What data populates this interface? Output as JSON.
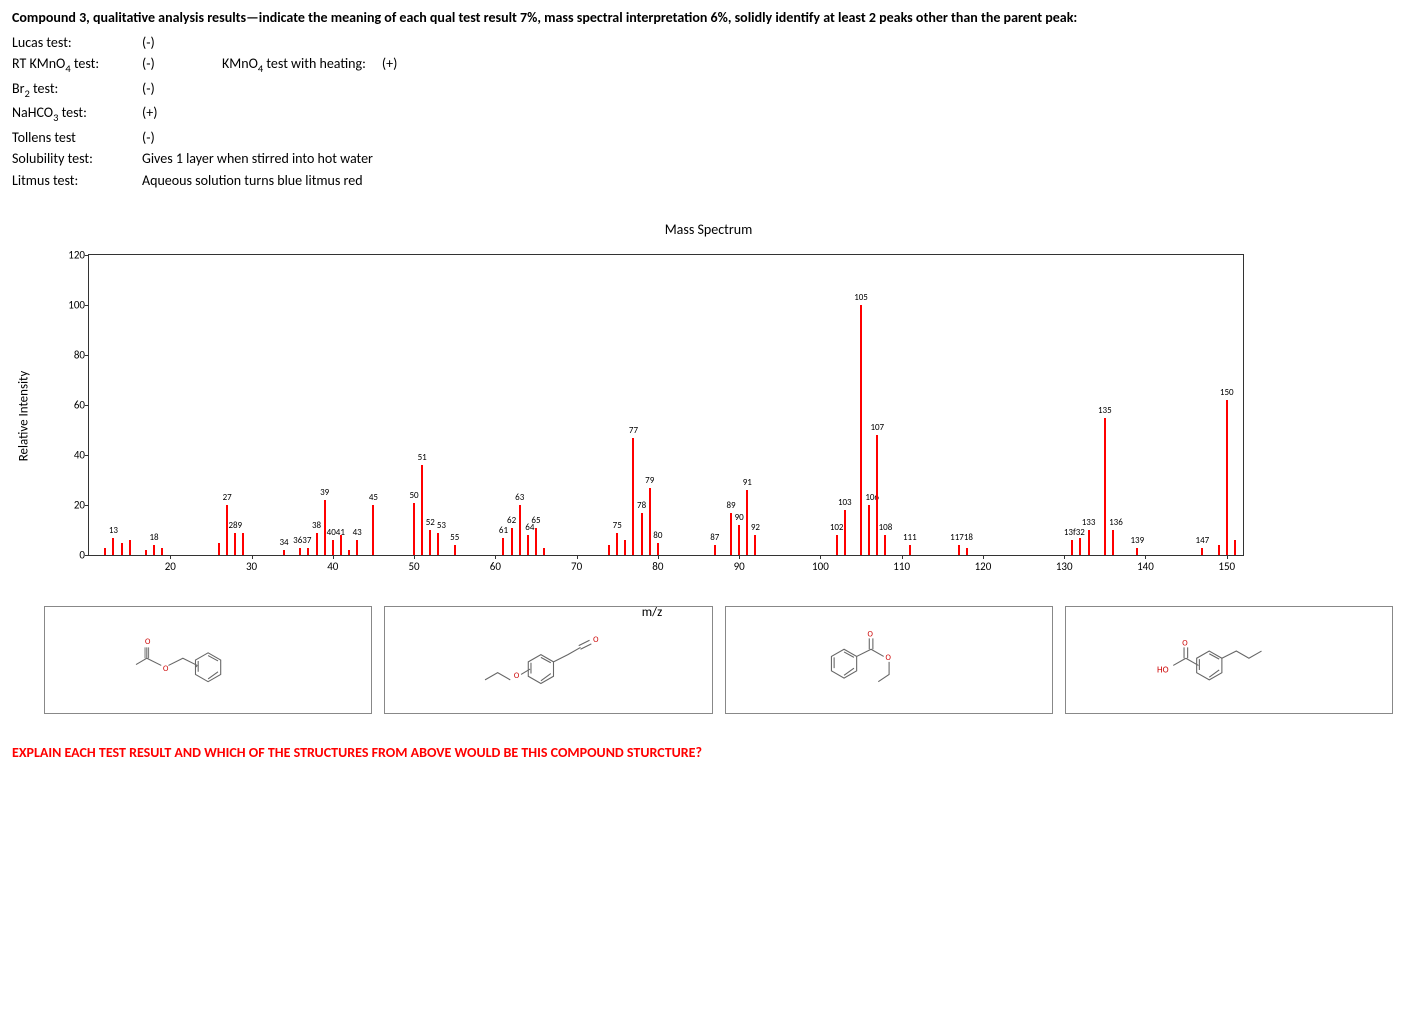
{
  "header": "Compound 3, qualitative analysis results—indicate the meaning of each qual test result 7%, mass spectral interpretation 6%, solidly identify at least 2 peaks other than the parent peak:",
  "tests": {
    "lucas": {
      "label": "Lucas test:",
      "result": "(-)"
    },
    "kmno4_rt": {
      "label": "RT KMnO₄ test:",
      "result": "(-)",
      "extra_label": "KMnO₄ test with heating:",
      "extra_result": "(+)"
    },
    "br2": {
      "label": "Br₂ test:",
      "result": "(-)"
    },
    "nahco3": {
      "label": "NaHCO₃ test:",
      "result": "(+)"
    },
    "tollens": {
      "label": "Tollens test",
      "result": "(-)"
    },
    "solubility": {
      "label": "Solubility test:",
      "result": "Gives 1 layer when stirred into hot water"
    },
    "litmus": {
      "label": "Litmus test:",
      "result": "Aqueous solution turns blue litmus red"
    }
  },
  "chart": {
    "title": "Mass Spectrum",
    "ylabel": "Relative Intensity",
    "xlabel": "m/z",
    "xlim": [
      10,
      152
    ],
    "ylim": [
      0,
      120
    ],
    "yticks": [
      0,
      20,
      40,
      60,
      80,
      100,
      120
    ],
    "xticks": [
      20,
      30,
      40,
      50,
      60,
      70,
      80,
      90,
      100,
      110,
      120,
      130,
      140,
      150
    ],
    "peak_color": "#ff0000",
    "label_color": "#000000",
    "peaks": [
      {
        "mz": 12,
        "i": 3,
        "label": ""
      },
      {
        "mz": 13,
        "i": 7,
        "label": "13"
      },
      {
        "mz": 14,
        "i": 5,
        "label": ""
      },
      {
        "mz": 15,
        "i": 6,
        "label": ""
      },
      {
        "mz": 17,
        "i": 2,
        "label": ""
      },
      {
        "mz": 18,
        "i": 4,
        "label": "18"
      },
      {
        "mz": 19,
        "i": 3,
        "label": ""
      },
      {
        "mz": 26,
        "i": 5,
        "label": ""
      },
      {
        "mz": 27,
        "i": 20,
        "label": "27"
      },
      {
        "mz": 28,
        "i": 9,
        "label": "289",
        "labelOffset": 0
      },
      {
        "mz": 29,
        "i": 9,
        "label": ""
      },
      {
        "mz": 34,
        "i": 2,
        "label": "34"
      },
      {
        "mz": 36,
        "i": 3,
        "label": "3637",
        "labelOffset": 2
      },
      {
        "mz": 37,
        "i": 3,
        "label": ""
      },
      {
        "mz": 38,
        "i": 9,
        "label": "38"
      },
      {
        "mz": 39,
        "i": 22,
        "label": "39"
      },
      {
        "mz": 40,
        "i": 6,
        "label": "4041",
        "labelOffset": 3
      },
      {
        "mz": 41,
        "i": 8,
        "label": ""
      },
      {
        "mz": 42,
        "i": 2,
        "label": ""
      },
      {
        "mz": 43,
        "i": 6,
        "label": "43"
      },
      {
        "mz": 45,
        "i": 20,
        "label": "45"
      },
      {
        "mz": 50,
        "i": 21,
        "label": "50"
      },
      {
        "mz": 51,
        "i": 36,
        "label": "51"
      },
      {
        "mz": 52,
        "i": 10,
        "label": "52"
      },
      {
        "mz": 53,
        "i": 9,
        "label": "53",
        "labelOffset": 3
      },
      {
        "mz": 55,
        "i": 4,
        "label": "55"
      },
      {
        "mz": 61,
        "i": 7,
        "label": "61"
      },
      {
        "mz": 62,
        "i": 11,
        "label": "62"
      },
      {
        "mz": 63,
        "i": 20,
        "label": "63"
      },
      {
        "mz": 64,
        "i": 8,
        "label": "64",
        "labelOffset": 2
      },
      {
        "mz": 65,
        "i": 11,
        "label": "65"
      },
      {
        "mz": 66,
        "i": 3,
        "label": ""
      },
      {
        "mz": 74,
        "i": 4,
        "label": ""
      },
      {
        "mz": 75,
        "i": 9,
        "label": "75"
      },
      {
        "mz": 76,
        "i": 6,
        "label": ""
      },
      {
        "mz": 77,
        "i": 47,
        "label": "77"
      },
      {
        "mz": 78,
        "i": 17,
        "label": "78"
      },
      {
        "mz": 79,
        "i": 27,
        "label": "79"
      },
      {
        "mz": 80,
        "i": 5,
        "label": "80"
      },
      {
        "mz": 87,
        "i": 4,
        "label": "87"
      },
      {
        "mz": 89,
        "i": 17,
        "label": "89"
      },
      {
        "mz": 90,
        "i": 12,
        "label": "90"
      },
      {
        "mz": 91,
        "i": 26,
        "label": "91"
      },
      {
        "mz": 92,
        "i": 8,
        "label": "92"
      },
      {
        "mz": 102,
        "i": 8,
        "label": "102"
      },
      {
        "mz": 103,
        "i": 18,
        "label": "103"
      },
      {
        "mz": 105,
        "i": 100,
        "label": "105"
      },
      {
        "mz": 106,
        "i": 20,
        "label": "106",
        "labelOffset": 3
      },
      {
        "mz": 107,
        "i": 48,
        "label": "107"
      },
      {
        "mz": 108,
        "i": 8,
        "label": "108"
      },
      {
        "mz": 111,
        "i": 4,
        "label": "111"
      },
      {
        "mz": 117,
        "i": 4,
        "label": "11718",
        "labelOffset": 3
      },
      {
        "mz": 118,
        "i": 3,
        "label": ""
      },
      {
        "mz": 131,
        "i": 6,
        "label": "13f32",
        "labelOffset": 2
      },
      {
        "mz": 132,
        "i": 7,
        "label": ""
      },
      {
        "mz": 133,
        "i": 10,
        "label": "133"
      },
      {
        "mz": 135,
        "i": 55,
        "label": "135"
      },
      {
        "mz": 136,
        "i": 10,
        "label": "136",
        "labelOffset": 3
      },
      {
        "mz": 139,
        "i": 3,
        "label": "139"
      },
      {
        "mz": 147,
        "i": 3,
        "label": "147"
      },
      {
        "mz": 149,
        "i": 4,
        "label": ""
      },
      {
        "mz": 150,
        "i": 62,
        "label": "150"
      },
      {
        "mz": 151,
        "i": 6,
        "label": ""
      }
    ]
  },
  "structures": [
    {
      "name": "benzyl-acetate"
    },
    {
      "name": "ethoxy-benzaldehyde"
    },
    {
      "name": "ethyl-benzoate"
    },
    {
      "name": "ethyl-benzoic-acid"
    }
  ],
  "final_question": "EXPLAIN EACH TEST RESULT AND WHICH OF THE STRUCTURES FROM ABOVE WOULD BE THIS COMPOUND STURCTURE?",
  "final_color": "#ff0000"
}
